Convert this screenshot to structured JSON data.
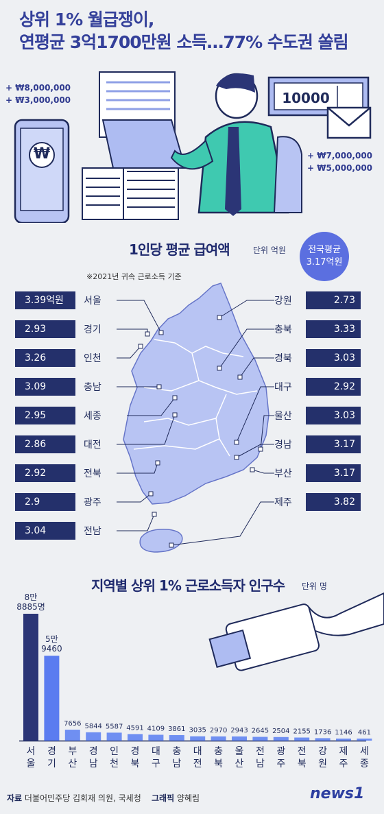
{
  "headline": {
    "line1": "상위 1% 월급쟁이,",
    "line2": "연평균 3억1700만원 소득…77% 수도권 쏠림"
  },
  "illustration": {
    "money_left": [
      "+ ₩8,000,000",
      "+ ₩3,000,000"
    ],
    "money_right": [
      "+ ₩7,000,000",
      "+ ₩5,000,000"
    ],
    "bill_text": "10000",
    "card_symbol": "₩"
  },
  "map_section": {
    "title": "1인당 평균 급여액",
    "unit": "단위 억원",
    "note": "※2021년 귀속 근로소득 기준",
    "national_avg": [
      "전국평균",
      "3.17억원"
    ],
    "left": [
      {
        "region": "서울",
        "value": "3.39억원"
      },
      {
        "region": "경기",
        "value": "2.93"
      },
      {
        "region": "인천",
        "value": "3.26"
      },
      {
        "region": "충남",
        "value": "3.09"
      },
      {
        "region": "세종",
        "value": "2.95"
      },
      {
        "region": "대전",
        "value": "2.86"
      },
      {
        "region": "전북",
        "value": "2.92"
      },
      {
        "region": "광주",
        "value": "2.9"
      },
      {
        "region": "전남",
        "value": "3.04"
      }
    ],
    "right": [
      {
        "region": "강원",
        "value": "2.73"
      },
      {
        "region": "충북",
        "value": "3.33"
      },
      {
        "region": "경북",
        "value": "3.03"
      },
      {
        "region": "대구",
        "value": "2.92"
      },
      {
        "region": "울산",
        "value": "3.03"
      },
      {
        "region": "경남",
        "value": "3.17"
      },
      {
        "region": "부산",
        "value": "3.17"
      },
      {
        "region": "제주",
        "value": "3.82"
      }
    ]
  },
  "chart_data": {
    "type": "bar",
    "title": "지역별 상위 1% 근로소득자 인구수",
    "unit": "단위 명",
    "categories": [
      "서울",
      "경기",
      "부산",
      "경남",
      "인천",
      "경북",
      "대구",
      "충남",
      "대전",
      "충북",
      "울산",
      "전남",
      "광주",
      "전북",
      "강원",
      "제주",
      "세종"
    ],
    "values": [
      88885,
      59460,
      7656,
      5844,
      5587,
      4591,
      4109,
      3861,
      3035,
      2970,
      2943,
      2645,
      2504,
      2155,
      1736,
      1146,
      461
    ],
    "value_labels": [
      [
        "8만",
        "8885명"
      ],
      [
        "5만",
        "9460"
      ],
      [
        "7656"
      ],
      [
        "5844"
      ],
      [
        "5587"
      ],
      [
        "4591"
      ],
      [
        "4109"
      ],
      [
        "3861"
      ],
      [
        "3035"
      ],
      [
        "2970"
      ],
      [
        "2943"
      ],
      [
        "2645"
      ],
      [
        "2504"
      ],
      [
        "2155"
      ],
      [
        "1736"
      ],
      [
        "1146"
      ],
      [
        "461"
      ]
    ],
    "colors": {
      "first": "#2b3576",
      "second": "#5b7cf0",
      "rest": "#6f8ff2"
    }
  },
  "footer": {
    "source_label": "자료",
    "source": "더불어민주당 김회재 의원, 국세청",
    "graphic_label": "그래픽",
    "graphic": "양혜림",
    "logo": "news1"
  }
}
